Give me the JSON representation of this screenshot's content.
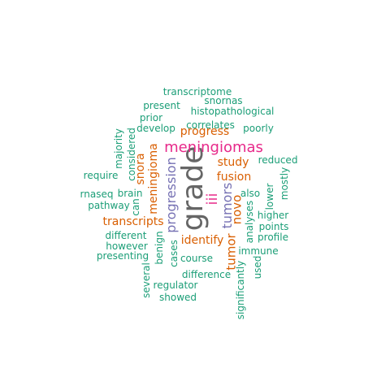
{
  "words": [
    {
      "key": "grade",
      "text": "grade",
      "color": "#666666"
    },
    {
      "key": "meningiomas",
      "text": "meningiomas",
      "color": "#e7298a"
    },
    {
      "key": "progression",
      "text": "progression",
      "color": "#7570b3"
    },
    {
      "key": "iii",
      "text": "iii",
      "color": "#e7298a"
    },
    {
      "key": "tumors",
      "text": "tumors",
      "color": "#7570b3"
    },
    {
      "key": "novo",
      "text": "novo",
      "color": "#d95f02"
    },
    {
      "key": "tumor",
      "text": "tumor",
      "color": "#d95f02"
    },
    {
      "key": "meningioma",
      "text": "meningioma",
      "color": "#d95f02"
    },
    {
      "key": "snora",
      "text": "snora",
      "color": "#d95f02"
    },
    {
      "key": "fusion",
      "text": "fusion",
      "color": "#d95f02"
    },
    {
      "key": "study",
      "text": "study",
      "color": "#d95f02"
    },
    {
      "key": "progress",
      "text": "progress",
      "color": "#d95f02"
    },
    {
      "key": "transcripts",
      "text": "transcripts",
      "color": "#d95f02"
    },
    {
      "key": "identify",
      "text": "identify",
      "color": "#d95f02"
    },
    {
      "key": "transcriptome",
      "text": "transcriptome",
      "color": "#1b9e77"
    },
    {
      "key": "snornas",
      "text": "snornas",
      "color": "#1b9e77"
    },
    {
      "key": "present",
      "text": "present",
      "color": "#1b9e77"
    },
    {
      "key": "histopathological",
      "text": "histopathological",
      "color": "#1b9e77"
    },
    {
      "key": "prior",
      "text": "prior",
      "color": "#1b9e77"
    },
    {
      "key": "correlates",
      "text": "correlates",
      "color": "#1b9e77"
    },
    {
      "key": "develop",
      "text": "develop",
      "color": "#1b9e77"
    },
    {
      "key": "poorly",
      "text": "poorly",
      "color": "#1b9e77"
    },
    {
      "key": "majority",
      "text": "majority",
      "color": "#1b9e77"
    },
    {
      "key": "considered",
      "text": "considered",
      "color": "#1b9e77"
    },
    {
      "key": "reduced",
      "text": "reduced",
      "color": "#1b9e77"
    },
    {
      "key": "mostly",
      "text": "mostly",
      "color": "#1b9e77"
    },
    {
      "key": "require",
      "text": "require",
      "color": "#1b9e77"
    },
    {
      "key": "also",
      "text": "also",
      "color": "#1b9e77"
    },
    {
      "key": "lower",
      "text": "lower",
      "color": "#1b9e77"
    },
    {
      "key": "rnaseq",
      "text": "rnaseq",
      "color": "#1b9e77"
    },
    {
      "key": "brain",
      "text": "brain",
      "color": "#1b9e77"
    },
    {
      "key": "can",
      "text": "can",
      "color": "#1b9e77"
    },
    {
      "key": "pathway",
      "text": "pathway",
      "color": "#1b9e77"
    },
    {
      "key": "higher",
      "text": "higher",
      "color": "#1b9e77"
    },
    {
      "key": "analyses",
      "text": "analyses",
      "color": "#1b9e77"
    },
    {
      "key": "points",
      "text": "points",
      "color": "#1b9e77"
    },
    {
      "key": "different",
      "text": "different",
      "color": "#1b9e77"
    },
    {
      "key": "profile",
      "text": "profile",
      "color": "#1b9e77"
    },
    {
      "key": "however",
      "text": "however",
      "color": "#1b9e77"
    },
    {
      "key": "benign",
      "text": "benign",
      "color": "#1b9e77"
    },
    {
      "key": "cases",
      "text": "cases",
      "color": "#1b9e77"
    },
    {
      "key": "immune",
      "text": "immune",
      "color": "#1b9e77"
    },
    {
      "key": "presenting",
      "text": "presenting",
      "color": "#1b9e77"
    },
    {
      "key": "course",
      "text": "course",
      "color": "#1b9e77"
    },
    {
      "key": "used",
      "text": "used",
      "color": "#1b9e77"
    },
    {
      "key": "several",
      "text": "several",
      "color": "#1b9e77"
    },
    {
      "key": "difference",
      "text": "difference",
      "color": "#1b9e77"
    },
    {
      "key": "regulator",
      "text": "regulator",
      "color": "#1b9e77"
    },
    {
      "key": "significantly",
      "text": "significantly",
      "color": "#1b9e77"
    },
    {
      "key": "showed",
      "text": "showed",
      "color": "#1b9e77"
    }
  ]
}
